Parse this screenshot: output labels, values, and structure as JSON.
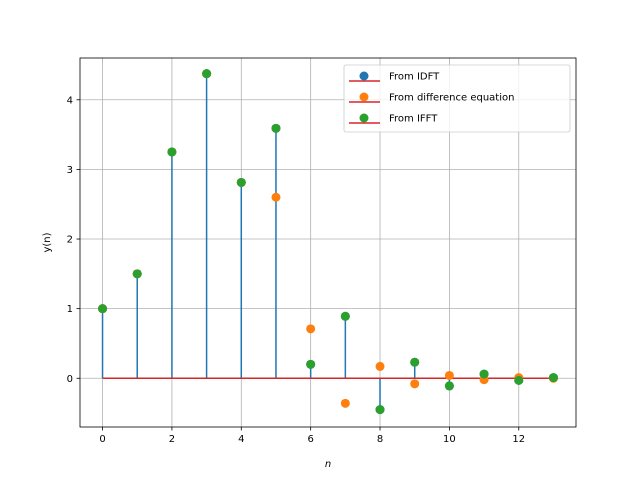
{
  "chart_data": {
    "type": "stem",
    "title": "",
    "xlabel": "n",
    "ylabel": "y(n)",
    "xlim": [
      -0.65,
      13.65
    ],
    "ylim": [
      -0.7,
      4.6
    ],
    "grid": true,
    "legend_position": "top-right",
    "x_ticks": [
      0,
      2,
      4,
      6,
      8,
      10,
      12
    ],
    "y_ticks": [
      0,
      1,
      2,
      3,
      4
    ],
    "x_tick_labels": [
      "0",
      "2",
      "4",
      "6",
      "8",
      "10",
      "12"
    ],
    "y_tick_labels": [
      "0",
      "1",
      "2",
      "3",
      "4"
    ],
    "x": [
      0,
      1,
      2,
      3,
      4,
      5,
      6,
      7,
      8,
      9,
      10,
      11,
      12,
      13
    ],
    "series": [
      {
        "name": "From IDFT",
        "color": "#1f77b4",
        "stem_color": "#1f77b4",
        "baseline_color": "#d62728",
        "values": [
          1.0,
          1.5,
          3.25,
          4.375,
          2.8125,
          3.59,
          0.2,
          0.89,
          -0.45,
          0.23,
          -0.11,
          0.06,
          -0.03,
          0.01
        ]
      },
      {
        "name": "From difference equation",
        "color": "#ff7f0e",
        "values": [
          1.0,
          1.5,
          3.25,
          4.375,
          2.8125,
          2.6,
          0.71,
          -0.36,
          0.17,
          -0.08,
          0.04,
          -0.02,
          0.01,
          0.0
        ]
      },
      {
        "name": "From IFFT",
        "color": "#2ca02c",
        "values": [
          1.0,
          1.5,
          3.25,
          4.375,
          2.8125,
          3.59,
          0.2,
          0.89,
          -0.45,
          0.23,
          -0.11,
          0.06,
          -0.03,
          0.01
        ]
      }
    ],
    "legend": {
      "entries": [
        {
          "label": "From IDFT",
          "marker_color": "#1f77b4",
          "line_color": "#d62728"
        },
        {
          "label": "From difference equation",
          "marker_color": "#ff7f0e",
          "line_color": "#d62728"
        },
        {
          "label": "From IFFT",
          "marker_color": "#2ca02c",
          "line_color": "#d62728"
        }
      ]
    }
  }
}
